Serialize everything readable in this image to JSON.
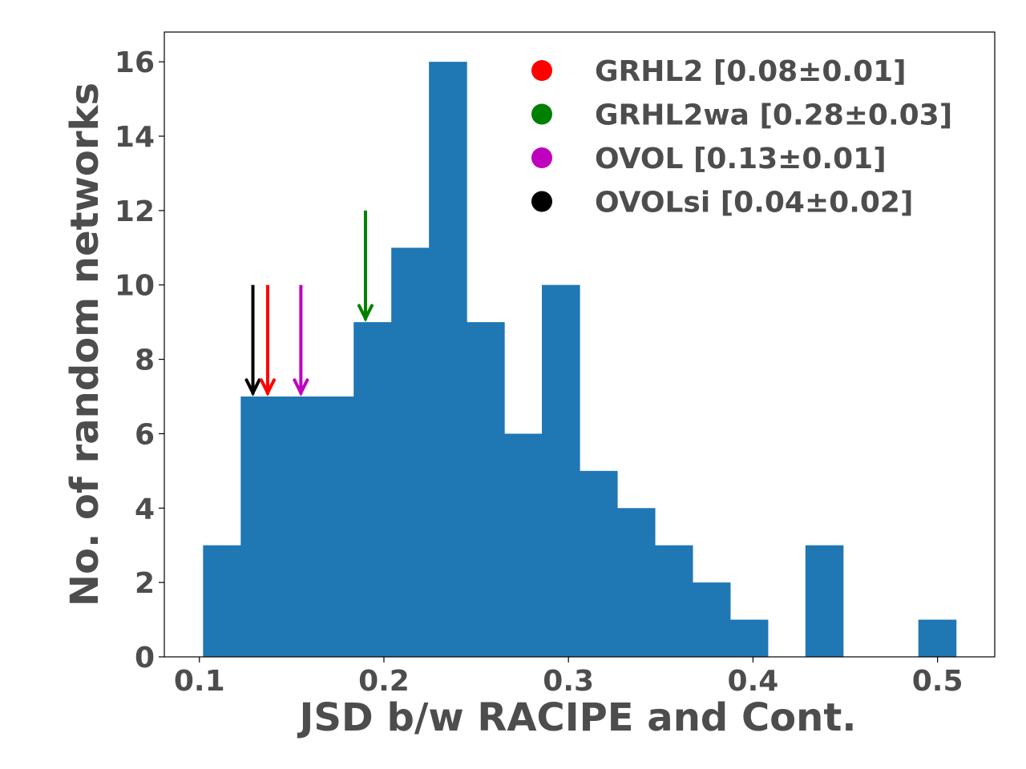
{
  "chart_data": {
    "type": "bar",
    "subtype": "histogram",
    "xlabel": "JSD b/w RACIPE and Cont.",
    "ylabel": "No. of random networks",
    "xlim": [
      0.081,
      0.531
    ],
    "ylim": [
      0,
      16.8
    ],
    "x_ticks": [
      0.1,
      0.2,
      0.3,
      0.4,
      0.5
    ],
    "x_tick_labels": [
      "0.1",
      "0.2",
      "0.3",
      "0.4",
      "0.5"
    ],
    "y_ticks": [
      0,
      2,
      4,
      6,
      8,
      10,
      12,
      14,
      16
    ],
    "y_tick_labels": [
      "0",
      "2",
      "4",
      "6",
      "8",
      "10",
      "12",
      "14",
      "16"
    ],
    "bar_color": "#1f77b4",
    "bin_edges": [
      0.102,
      0.1224,
      0.1428,
      0.1632,
      0.1836,
      0.204,
      0.2244,
      0.2448,
      0.2652,
      0.2856,
      0.306,
      0.3264,
      0.3468,
      0.3672,
      0.3876,
      0.408,
      0.4284,
      0.4488,
      0.4692,
      0.4896,
      0.51
    ],
    "counts": [
      3,
      7,
      7,
      7,
      9,
      11,
      16,
      9,
      6,
      10,
      5,
      4,
      3,
      2,
      1,
      0,
      3,
      0,
      0,
      1
    ],
    "grid": false,
    "legend_position": "top-right",
    "markers": [
      {
        "name": "GRHL2 [0.08±0.01]",
        "color": "#ff0000",
        "x": 0.137,
        "y_from": 10,
        "y_to": 7.1
      },
      {
        "name": "GRHL2wa [0.28±0.03]",
        "color": "#008000",
        "x": 0.19,
        "y_from": 12,
        "y_to": 9.1
      },
      {
        "name": "OVOL [0.13±0.01]",
        "color": "#bf00bf",
        "x": 0.155,
        "y_from": 10,
        "y_to": 7.1
      },
      {
        "name": "OVOLsi [0.04±0.02]",
        "color": "#000000",
        "x": 0.129,
        "y_from": 10,
        "y_to": 7.1
      }
    ]
  }
}
